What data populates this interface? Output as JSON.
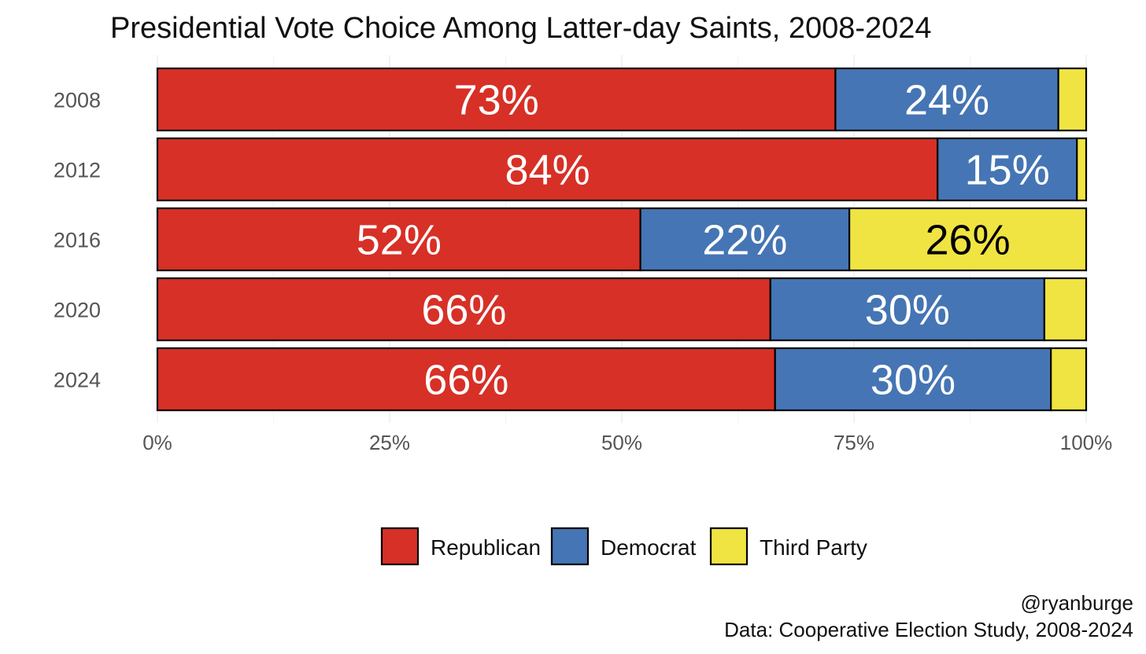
{
  "chart_data": {
    "type": "bar",
    "orientation": "horizontal",
    "stacked": true,
    "title": "Presidential Vote Choice Among Latter-day Saints, 2008-2024",
    "categories": [
      "2008",
      "2012",
      "2016",
      "2020",
      "2024"
    ],
    "series": [
      {
        "name": "Republican",
        "color": "#d73027",
        "label_color": "#ffffff",
        "values": [
          73,
          84,
          52,
          66,
          66.5
        ],
        "labels": [
          "73%",
          "84%",
          "52%",
          "66%",
          "66%"
        ]
      },
      {
        "name": "Democrat",
        "color": "#4575b4",
        "label_color": "#ffffff",
        "values": [
          24,
          15,
          22.5,
          29.5,
          29.7
        ],
        "labels": [
          "24%",
          "15%",
          "22%",
          "30%",
          "30%"
        ]
      },
      {
        "name": "Third Party",
        "color": "#f0e442",
        "label_color": "#000000",
        "values": [
          3,
          1,
          25.5,
          4.5,
          3.8
        ],
        "labels": [
          "",
          "",
          "26%",
          "",
          ""
        ]
      }
    ],
    "xlim": [
      0,
      100
    ],
    "x_ticks": [
      "0%",
      "25%",
      "50%",
      "75%",
      "100%"
    ],
    "grid": true,
    "legend_position": "bottom",
    "caption": [
      "@ryanburge",
      "Data: Cooperative Election Study, 2008-2024"
    ]
  }
}
